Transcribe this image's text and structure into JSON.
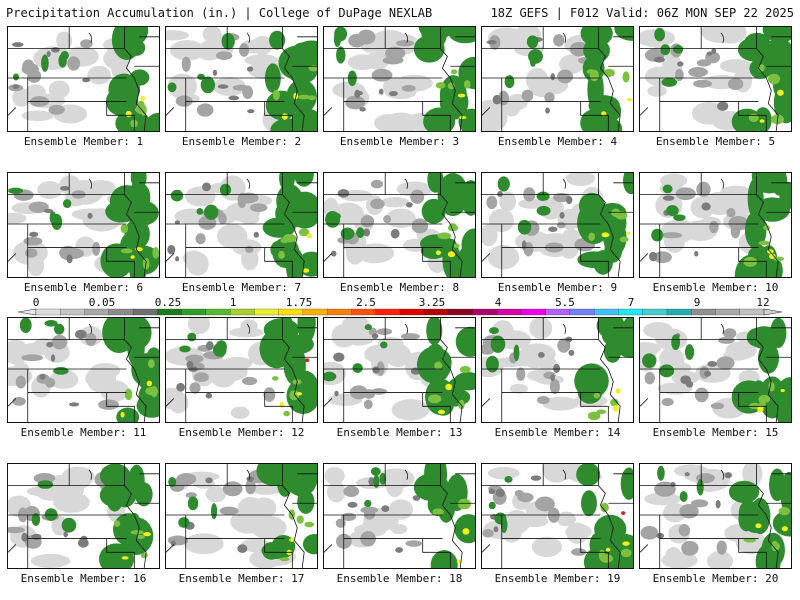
{
  "header": {
    "title": "Precipitation Accumulation (in.) | College of DuPage NEXLAB",
    "run_info": "18Z GEFS | F012 Valid: 06Z MON SEP 22 2025"
  },
  "members": [
    {
      "label": "Ensemble Member: 1"
    },
    {
      "label": "Ensemble Member: 2"
    },
    {
      "label": "Ensemble Member: 3"
    },
    {
      "label": "Ensemble Member: 4"
    },
    {
      "label": "Ensemble Member: 5"
    },
    {
      "label": "Ensemble Member: 6"
    },
    {
      "label": "Ensemble Member: 7"
    },
    {
      "label": "Ensemble Member: 8"
    },
    {
      "label": "Ensemble Member: 9"
    },
    {
      "label": "Ensemble Member: 10"
    },
    {
      "label": "Ensemble Member: 11"
    },
    {
      "label": "Ensemble Member: 12"
    },
    {
      "label": "Ensemble Member: 13"
    },
    {
      "label": "Ensemble Member: 14"
    },
    {
      "label": "Ensemble Member: 15"
    },
    {
      "label": "Ensemble Member: 16"
    },
    {
      "label": "Ensemble Member: 17"
    },
    {
      "label": "Ensemble Member: 18"
    },
    {
      "label": "Ensemble Member: 19"
    },
    {
      "label": "Ensemble Member: 20"
    }
  ],
  "colorbar": {
    "tick_labels": [
      "0",
      "0.05",
      "0.25",
      "1",
      "1.75",
      "2.5",
      "3.25",
      "4",
      "5.5",
      "7",
      "9",
      "12"
    ],
    "colors": [
      "#dcdcdc",
      "#c4c4c4",
      "#a8a8a8",
      "#8c8c8c",
      "#707070",
      "#1f7a1f",
      "#2e9e2e",
      "#5ab92b",
      "#a6d22c",
      "#e8f02c",
      "#ffe000",
      "#ffb000",
      "#ff8000",
      "#ff5000",
      "#ff2000",
      "#e00000",
      "#b80000",
      "#900020",
      "#b0006a",
      "#d800a8",
      "#f000f0",
      "#b060ff",
      "#7080ff",
      "#40c0ff",
      "#20e8f0",
      "#40d0d0",
      "#20b0b0",
      "#909090",
      "#a8a8a8",
      "#c0c0c0"
    ]
  },
  "map_colors": {
    "light_gray": "#d8d8d8",
    "mid_gray": "#a4a4a4",
    "dark_gray": "#7c7c7c",
    "green": "#2e8b2e",
    "light_green": "#7cc040",
    "yellow": "#f0f020",
    "red": "#e02020",
    "border": "#111111"
  }
}
